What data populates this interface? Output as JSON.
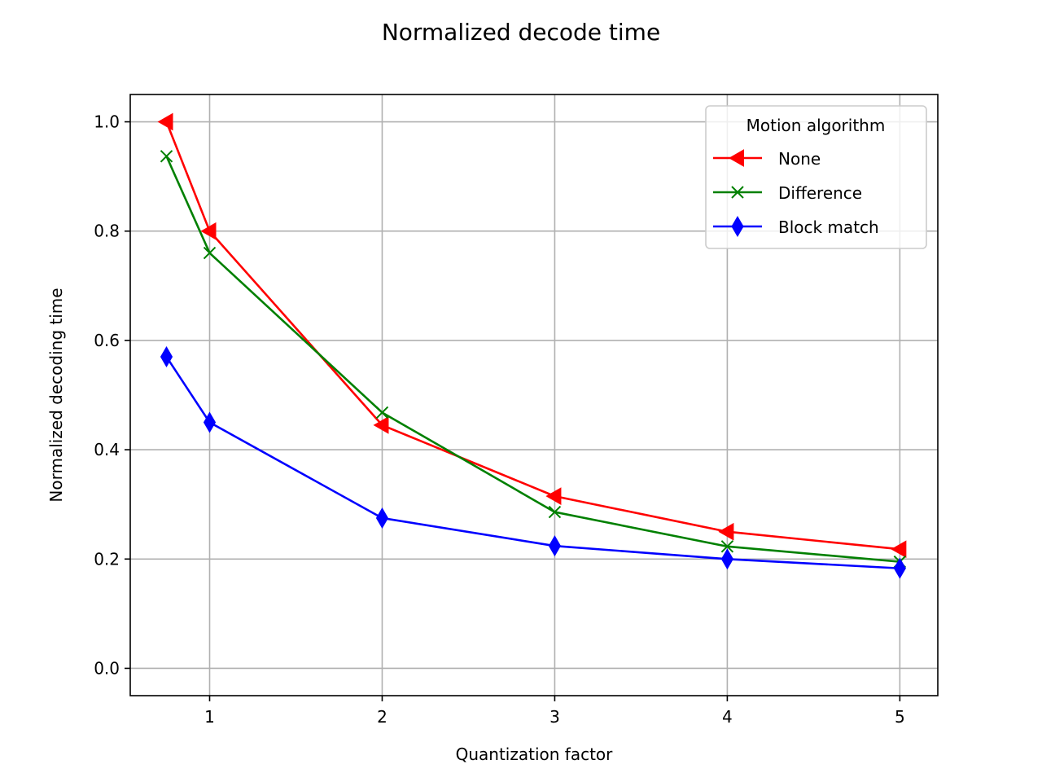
{
  "chart_data": {
    "type": "line",
    "title": "Normalized decode time",
    "xlabel": "Quantization factor",
    "ylabel": "Normalized decoding time",
    "xlim": [
      0.54,
      5.22
    ],
    "ylim": [
      -0.05,
      1.05
    ],
    "xticks": [
      1,
      2,
      3,
      4,
      5
    ],
    "xtick_labels": [
      "1",
      "2",
      "3",
      "4",
      "5"
    ],
    "yticks": [
      0.0,
      0.2,
      0.4,
      0.6,
      0.8,
      1.0
    ],
    "ytick_labels": [
      "0.0",
      "0.2",
      "0.4",
      "0.6",
      "0.8",
      "1.0"
    ],
    "grid": true,
    "x": [
      0.75,
      1,
      2,
      3,
      4,
      5
    ],
    "legend": {
      "title": "Motion algorithm",
      "placement": "top-right"
    },
    "series": [
      {
        "name": "None",
        "color": "#ff0000",
        "marker": "triangle-left",
        "values": [
          1.0,
          0.8,
          0.445,
          0.315,
          0.25,
          0.218
        ]
      },
      {
        "name": "Difference",
        "color": "#008000",
        "marker": "x",
        "values": [
          0.937,
          0.76,
          0.468,
          0.286,
          0.223,
          0.195
        ]
      },
      {
        "name": "Block match",
        "color": "#0000ff",
        "marker": "thin-diamond",
        "values": [
          0.57,
          0.45,
          0.275,
          0.224,
          0.2,
          0.183
        ]
      }
    ]
  }
}
